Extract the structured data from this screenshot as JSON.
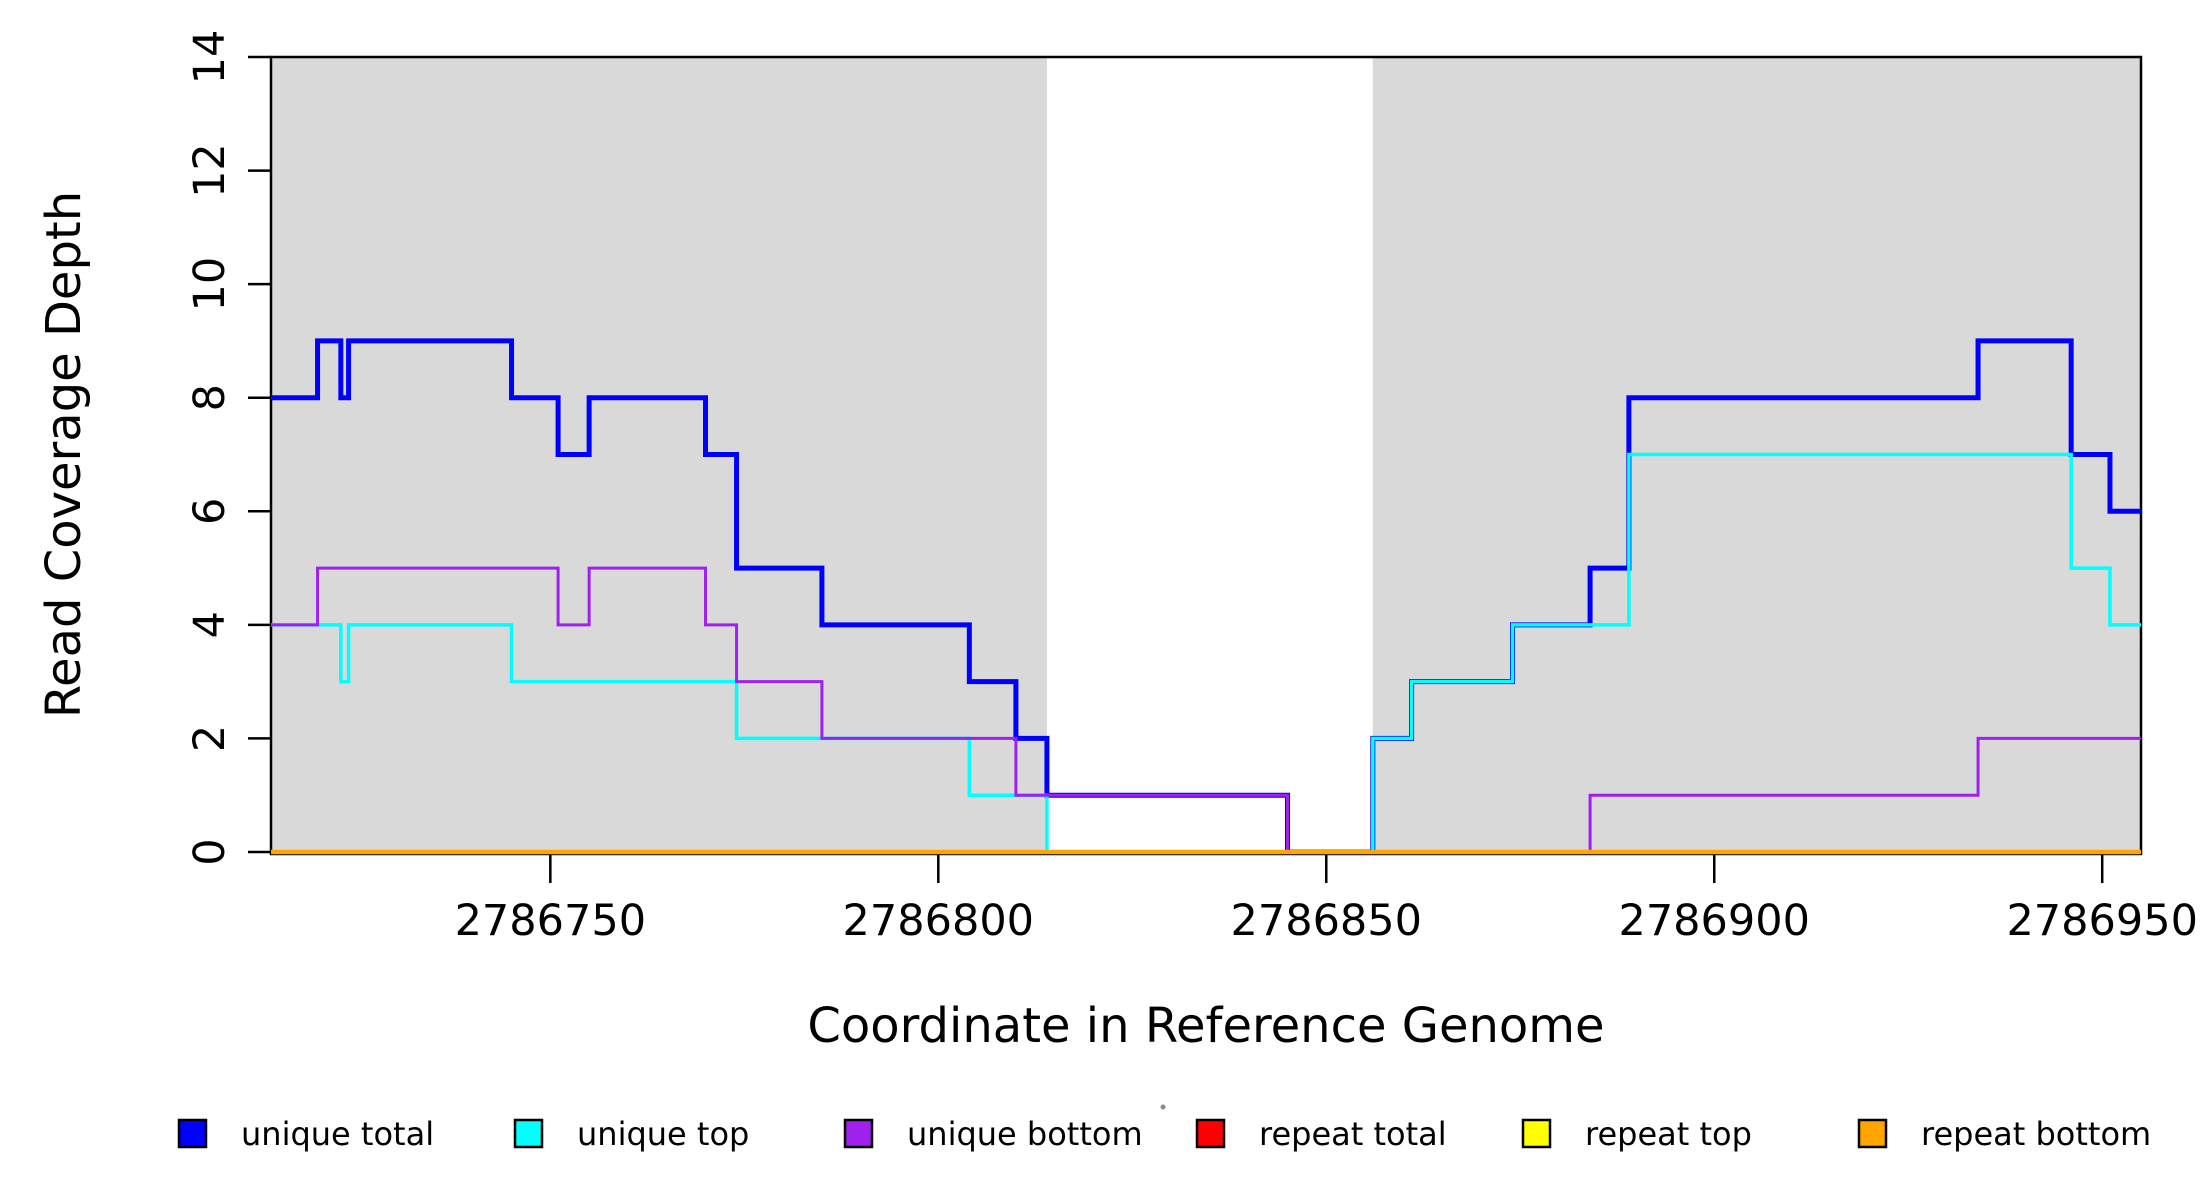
{
  "chart_data": {
    "type": "line",
    "line_style": "step-post",
    "title": "",
    "xlabel": "Coordinate in Reference Genome",
    "ylabel": "Read Coverage Depth",
    "xlim": [
      2786714,
      2786955
    ],
    "ylim": [
      0,
      14
    ],
    "x_ticks": [
      2786750,
      2786800,
      2786850,
      2786900,
      2786950
    ],
    "y_ticks": [
      0,
      2,
      4,
      6,
      8,
      10,
      12,
      14
    ],
    "grid": false,
    "legend_position": "bottom",
    "plot_background": "#FFFFFF",
    "region_color": "#D9D9D9",
    "axis_color": "#000000",
    "shaded_regions": [
      {
        "name": "unique-region-left",
        "x0": 2786714,
        "x1": 2786814
      },
      {
        "name": "unique-region-right",
        "x0": 2786856,
        "x1": 2786955
      }
    ],
    "series": [
      {
        "name": "unique total",
        "color": "#0000FF",
        "width": 5,
        "steps": [
          [
            2786714,
            8
          ],
          [
            2786720,
            9
          ],
          [
            2786723,
            8
          ],
          [
            2786724,
            9
          ],
          [
            2786745,
            8
          ],
          [
            2786751,
            7
          ],
          [
            2786755,
            8
          ],
          [
            2786770,
            7
          ],
          [
            2786774,
            5
          ],
          [
            2786785,
            4
          ],
          [
            2786804,
            3
          ],
          [
            2786810,
            2
          ],
          [
            2786814,
            1
          ],
          [
            2786845,
            0
          ],
          [
            2786856,
            2
          ],
          [
            2786861,
            3
          ],
          [
            2786874,
            4
          ],
          [
            2786884,
            5
          ],
          [
            2786889,
            8
          ],
          [
            2786934,
            9
          ],
          [
            2786946,
            7
          ],
          [
            2786951,
            6
          ]
        ]
      },
      {
        "name": "unique top",
        "color": "#00FFFF",
        "width": 3.5,
        "steps": [
          [
            2786714,
            4
          ],
          [
            2786723,
            3
          ],
          [
            2786724,
            4
          ],
          [
            2786745,
            3
          ],
          [
            2786774,
            2
          ],
          [
            2786804,
            1
          ],
          [
            2786814,
            0
          ],
          [
            2786856,
            2
          ],
          [
            2786861,
            3
          ],
          [
            2786874,
            4
          ],
          [
            2786889,
            7
          ],
          [
            2786946,
            5
          ],
          [
            2786951,
            4
          ]
        ]
      },
      {
        "name": "unique bottom",
        "color": "#A020F0",
        "width": 3,
        "steps": [
          [
            2786714,
            4
          ],
          [
            2786720,
            5
          ],
          [
            2786751,
            4
          ],
          [
            2786755,
            5
          ],
          [
            2786770,
            4
          ],
          [
            2786774,
            3
          ],
          [
            2786785,
            2
          ],
          [
            2786810,
            1
          ],
          [
            2786845,
            0
          ],
          [
            2786884,
            1
          ],
          [
            2786934,
            2
          ]
        ]
      },
      {
        "name": "repeat total",
        "color": "#FF0000",
        "width": 3,
        "steps": [
          [
            2786714,
            0
          ]
        ]
      },
      {
        "name": "repeat top",
        "color": "#FFFF00",
        "width": 3,
        "steps": [
          [
            2786714,
            0
          ]
        ]
      },
      {
        "name": "repeat bottom",
        "color": "#FFA500",
        "width": 4.5,
        "steps": [
          [
            2786714,
            0
          ]
        ]
      }
    ]
  },
  "legend": {
    "items": [
      {
        "label": "unique total",
        "color": "#0000FF"
      },
      {
        "label": "unique top",
        "color": "#00FFFF"
      },
      {
        "label": "unique bottom",
        "color": "#A020F0"
      },
      {
        "label": "repeat total",
        "color": "#FF0000"
      },
      {
        "label": "repeat top",
        "color": "#FFFF00"
      },
      {
        "label": "repeat bottom",
        "color": "#FFA500"
      }
    ],
    "stray_mark": "·"
  }
}
